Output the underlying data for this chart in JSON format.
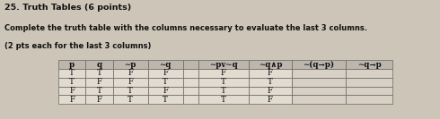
{
  "title_line1": "25. Truth Tables (6 points)",
  "title_line2": "Complete the truth table with the columns necessary to evaluate the last 3 columns.",
  "title_line3": "(2 pts each for the last 3 columns)",
  "headers": [
    "p",
    "q",
    "∼p",
    "∼q",
    "",
    "∼pv∼q",
    "∼q∧p",
    "∼(q→p)",
    "∼q→p"
  ],
  "rows": [
    [
      "T",
      "T",
      "F",
      "F",
      "",
      "F",
      "F",
      "",
      ""
    ],
    [
      "T",
      "F",
      "F",
      "T",
      "",
      "T",
      "T",
      "",
      ""
    ],
    [
      "F",
      "T",
      "T",
      "F",
      "",
      "T",
      "F",
      "",
      ""
    ],
    [
      "F",
      "F",
      "T",
      "T",
      "",
      "T",
      "F",
      "",
      ""
    ]
  ],
  "col_widths": [
    0.7,
    0.7,
    0.9,
    0.9,
    0.4,
    1.3,
    1.1,
    1.4,
    1.2
  ],
  "bg_color": "#cdc5b8",
  "table_bg": "#e2dbd0",
  "header_fill": "#bdb6ac",
  "blank_fill": "#d8d0c4",
  "text_color": "#111111",
  "title_color": "#111111",
  "border_color": "#666666",
  "title1_fontsize": 6.8,
  "title2_fontsize": 6.0,
  "title3_fontsize": 6.0,
  "cell_fontsize": 6.2
}
